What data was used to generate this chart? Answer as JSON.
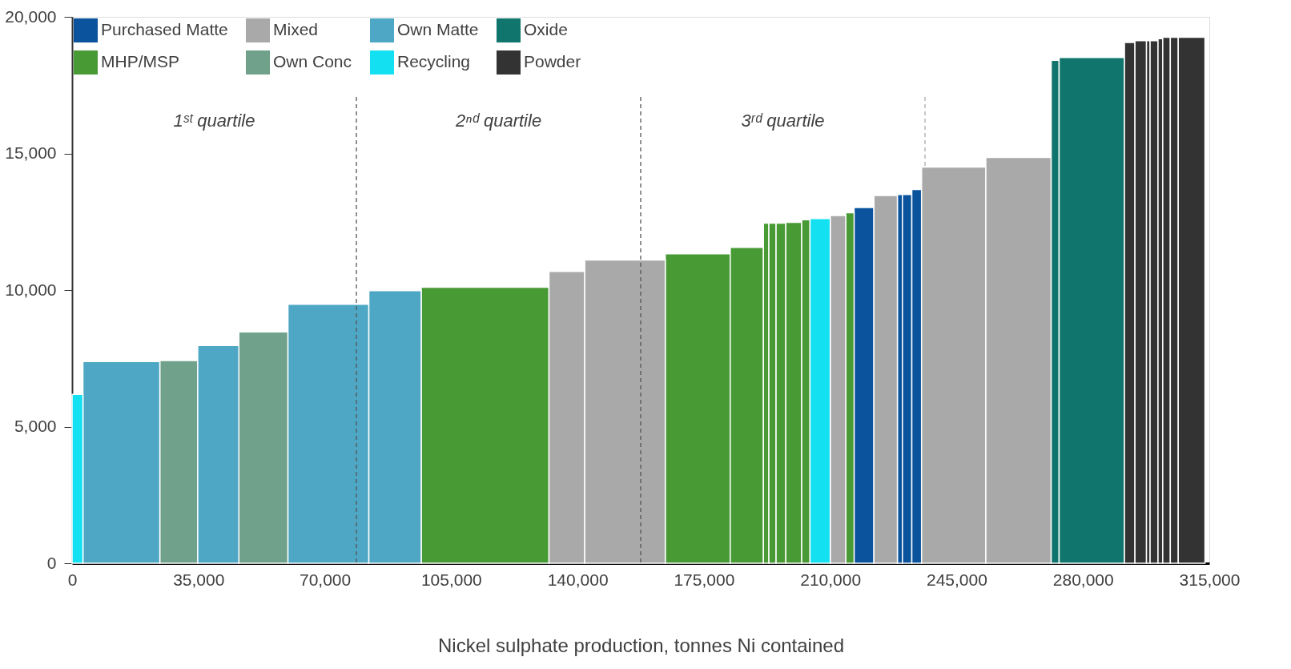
{
  "chart_data": {
    "type": "histogram",
    "xlabel": "Nickel sulphate production, tonnes Ni contained",
    "bins": [
      0,
      3000,
      24300,
      34800,
      46200,
      59800,
      82200,
      96700,
      132100,
      142000,
      164300,
      182300,
      191500,
      193000,
      195000,
      197700,
      202100,
      204400,
      210000,
      214300,
      216600,
      222100,
      228600,
      230000,
      232600,
      235300,
      253100,
      271200,
      273400,
      291500,
      294400,
      297600,
      298600,
      300800,
      302100,
      304200,
      306400,
      313800
    ],
    "series": [
      {
        "name": "Purchased Matte",
        "color": "#0b539c",
        "values": [
          null,
          null,
          null,
          null,
          null,
          null,
          null,
          null,
          null,
          null,
          null,
          null,
          null,
          null,
          null,
          null,
          null,
          null,
          null,
          null,
          13020,
          null,
          13500,
          13500,
          13680,
          null,
          null,
          null,
          null,
          null,
          null,
          null,
          null,
          null,
          null,
          null,
          null
        ]
      },
      {
        "name": "MHP/MSP",
        "color": "#489a35",
        "values": [
          null,
          null,
          null,
          null,
          null,
          null,
          null,
          10100,
          null,
          null,
          11330,
          11560,
          12450,
          12450,
          12450,
          12480,
          12570,
          null,
          null,
          12830,
          null,
          null,
          null,
          null,
          null,
          null,
          null,
          null,
          null,
          null,
          null,
          null,
          null,
          null,
          null,
          null,
          null
        ]
      },
      {
        "name": "Mixed",
        "color": "#a9a9a9",
        "values": [
          null,
          null,
          null,
          null,
          null,
          null,
          null,
          null,
          10680,
          11100,
          null,
          null,
          null,
          null,
          null,
          null,
          null,
          null,
          12730,
          null,
          null,
          13460,
          null,
          null,
          null,
          14500,
          14850,
          null,
          null,
          null,
          null,
          null,
          null,
          null,
          null,
          null,
          null
        ]
      },
      {
        "name": "Own Conc",
        "color": "#70a18a",
        "values": [
          null,
          null,
          7420,
          null,
          8470,
          null,
          null,
          null,
          null,
          null,
          null,
          null,
          null,
          null,
          null,
          null,
          null,
          null,
          null,
          null,
          null,
          null,
          null,
          null,
          null,
          null,
          null,
          null,
          null,
          null,
          null,
          null,
          null,
          null,
          null,
          null,
          null
        ]
      },
      {
        "name": "Own Matte",
        "color": "#4ea7c4",
        "values": [
          null,
          7380,
          null,
          7970,
          null,
          9480,
          9980,
          null,
          null,
          null,
          null,
          null,
          null,
          null,
          null,
          null,
          null,
          null,
          null,
          null,
          null,
          null,
          null,
          null,
          null,
          null,
          null,
          null,
          null,
          null,
          null,
          null,
          null,
          null,
          null,
          null,
          null
        ]
      },
      {
        "name": "Recycling",
        "color": "#13e0f0",
        "values": [
          6180,
          null,
          null,
          null,
          null,
          null,
          null,
          null,
          null,
          null,
          null,
          null,
          null,
          null,
          null,
          null,
          null,
          12620,
          null,
          null,
          null,
          null,
          null,
          null,
          null,
          null,
          null,
          null,
          null,
          null,
          null,
          null,
          null,
          null,
          null,
          null,
          null
        ]
      },
      {
        "name": "Oxide",
        "color": "#10766d",
        "values": [
          null,
          null,
          null,
          null,
          null,
          null,
          null,
          null,
          null,
          null,
          null,
          null,
          null,
          null,
          null,
          null,
          null,
          null,
          null,
          null,
          null,
          null,
          null,
          null,
          null,
          null,
          null,
          18410,
          18510,
          null,
          null,
          null,
          null,
          null,
          null,
          null,
          null
        ]
      },
      {
        "name": "Powder",
        "color": "#333333",
        "values": [
          null,
          null,
          null,
          null,
          null,
          null,
          null,
          null,
          null,
          null,
          null,
          null,
          null,
          null,
          null,
          null,
          null,
          null,
          null,
          null,
          null,
          null,
          null,
          null,
          null,
          null,
          null,
          null,
          null,
          19060,
          19130,
          19130,
          19130,
          19200,
          19250,
          19250,
          19250
        ]
      }
    ],
    "xlim": [
      0,
      315000
    ],
    "xticks": [
      {
        "value": 0,
        "label": "0"
      },
      {
        "value": 35000,
        "label": "35,000"
      },
      {
        "value": 70000,
        "label": "70,000"
      },
      {
        "value": 105000,
        "label": "105,000"
      },
      {
        "value": 140000,
        "label": "140,000"
      },
      {
        "value": 175000,
        "label": "175,000"
      },
      {
        "value": 210000,
        "label": "210,000"
      },
      {
        "value": 245000,
        "label": "245,000"
      },
      {
        "value": 280000,
        "label": "280,000"
      },
      {
        "value": 315000,
        "label": "315,000"
      }
    ],
    "ylim": [
      0,
      20000
    ],
    "yticks": [
      {
        "value": 0,
        "label": "0"
      },
      {
        "value": 5000,
        "label": "5,000"
      },
      {
        "value": 10000,
        "label": "10,000"
      },
      {
        "value": 15000,
        "label": "15,000"
      },
      {
        "value": 20000,
        "label": "20,000"
      }
    ],
    "ref_lines": [
      {
        "axis": "x",
        "value": 78750,
        "color": "#555555",
        "line_style": "dashed"
      },
      {
        "axis": "x",
        "value": 157500,
        "color": "#555555",
        "line_style": "dashed"
      },
      {
        "axis": "x",
        "value": 236250,
        "color": "#aaaaaa",
        "line_style": "dashed"
      }
    ],
    "annotations": [
      "1ˢᵗ quartile",
      "2ⁿᵈ quartile",
      "3ʳᵈ quartile"
    ],
    "grid": false,
    "legend": "top"
  }
}
